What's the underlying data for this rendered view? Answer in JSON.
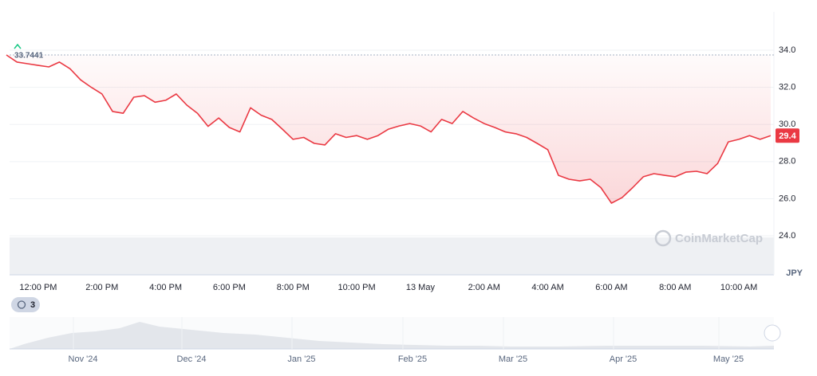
{
  "chart_data": {
    "type": "line",
    "categories": [
      null,
      null,
      null,
      "12:00 PM",
      null,
      null,
      null,
      null,
      null,
      "2:00 PM",
      null,
      null,
      null,
      null,
      null,
      "4:00 PM",
      null,
      null,
      null,
      null,
      null,
      "6:00 PM",
      null,
      null,
      null,
      null,
      null,
      "8:00 PM",
      null,
      null,
      null,
      null,
      null,
      "10:00 PM",
      null,
      null,
      null,
      null,
      null,
      "13 May",
      null,
      null,
      null,
      null,
      null,
      "2:00 AM",
      null,
      null,
      null,
      null,
      null,
      "4:00 AM",
      null,
      null,
      null,
      null,
      null,
      "6:00 AM",
      null,
      null,
      null,
      null,
      null,
      "8:00 AM",
      null,
      null,
      null,
      null,
      null,
      "10:00 AM",
      null,
      null,
      null
    ],
    "values": [
      33.7441,
      33.36,
      33.27,
      33.18,
      33.1,
      33.36,
      33.0,
      32.4,
      32.0,
      31.64,
      30.7,
      30.6,
      31.47,
      31.55,
      31.2,
      31.3,
      31.64,
      31.04,
      30.6,
      29.9,
      30.35,
      29.84,
      29.6,
      30.9,
      30.5,
      30.27,
      29.75,
      29.2,
      29.3,
      28.98,
      28.9,
      29.5,
      29.3,
      29.4,
      29.2,
      29.4,
      29.75,
      29.92,
      30.05,
      29.92,
      29.6,
      30.27,
      30.05,
      30.7,
      30.35,
      30.05,
      29.84,
      29.6,
      29.5,
      29.3,
      28.98,
      28.64,
      27.26,
      27.05,
      26.96,
      27.05,
      26.6,
      25.76,
      26.06,
      26.6,
      27.18,
      27.35,
      27.26,
      27.18,
      27.43,
      27.48,
      27.35,
      27.9,
      29.06,
      29.2,
      29.4,
      29.2,
      29.4
    ],
    "color": "#ea3943",
    "ylim": [
      21.9,
      36.0
    ],
    "yticks": [
      {
        "value": 24,
        "label": "24.0"
      },
      {
        "value": 26,
        "label": "26.0"
      },
      {
        "value": 28,
        "label": "28.0"
      },
      {
        "value": 30,
        "label": "30.0"
      },
      {
        "value": 32,
        "label": "32.0"
      },
      {
        "value": 34,
        "label": "34.0"
      }
    ],
    "grid": true,
    "unit": "JPY",
    "watermark": "CoinMarketCap",
    "history_count": 3,
    "navigator_labels": [
      "Nov '24",
      "Dec '24",
      "Jan '25",
      "Feb '25",
      "Mar '25",
      "Apr '25",
      "May '25"
    ]
  }
}
